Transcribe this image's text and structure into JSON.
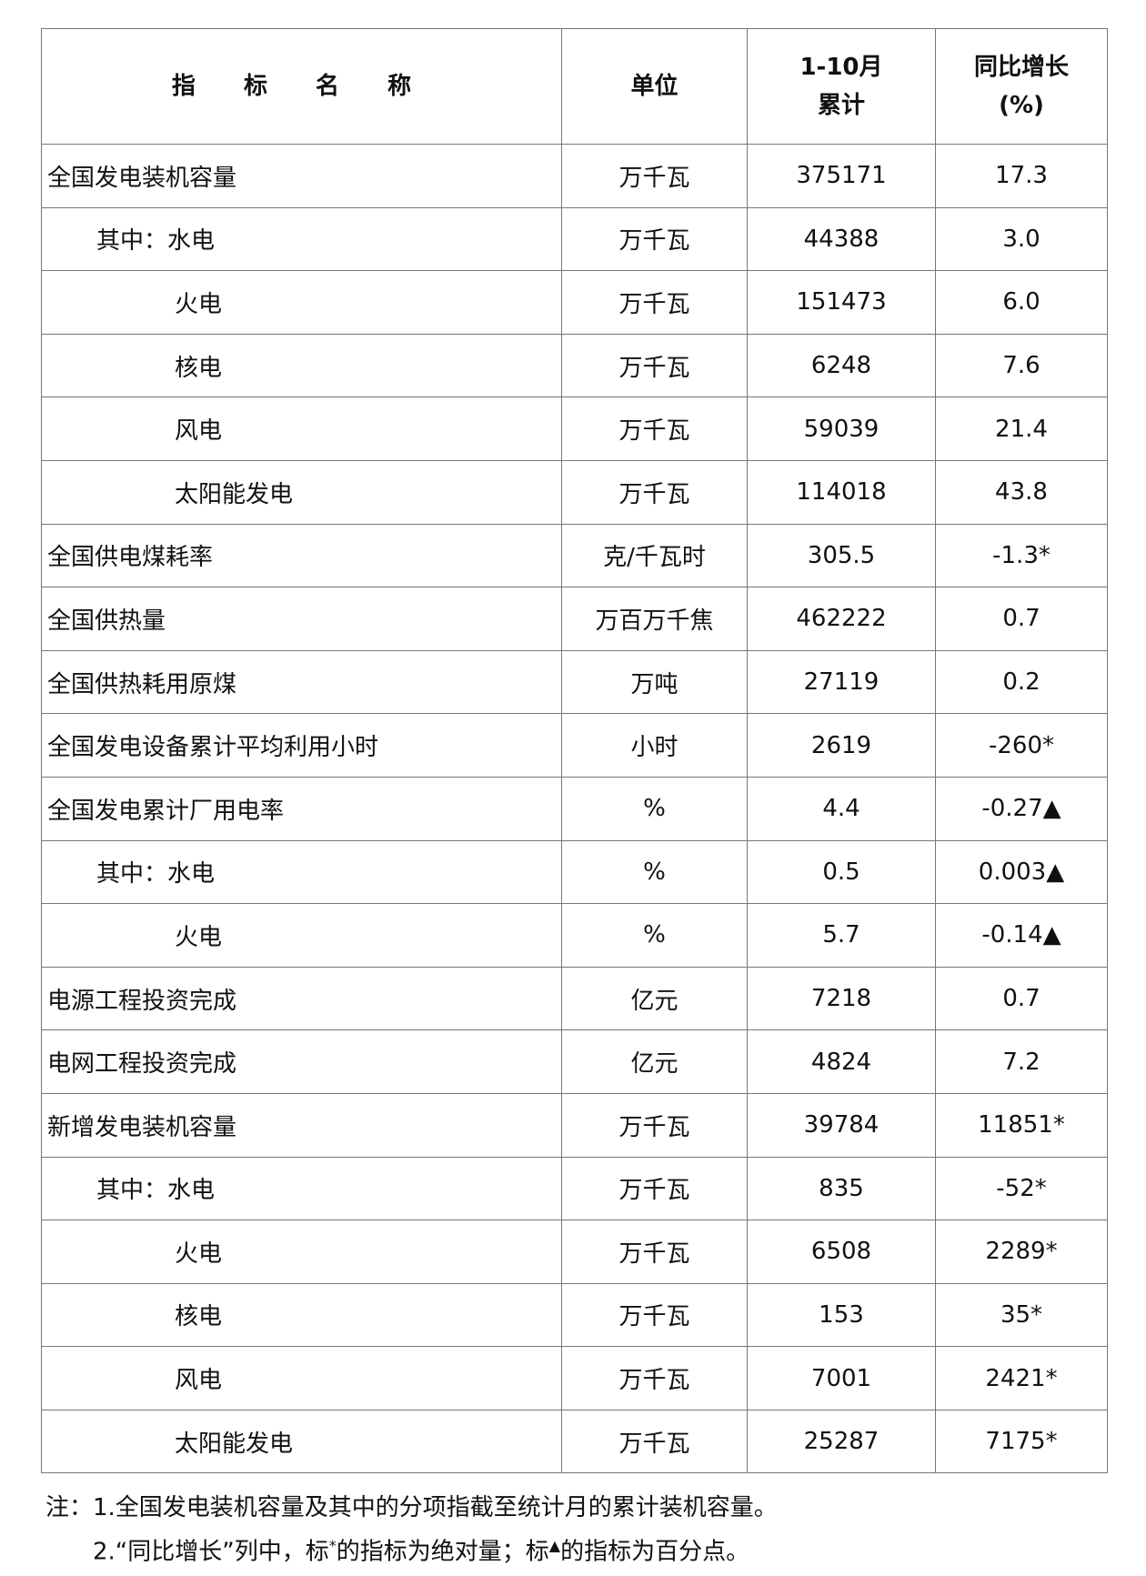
{
  "header": {
    "name": "指 标 名 称",
    "unit": "单位",
    "cum_line1": "1-10月",
    "cum_line2": "累计",
    "growth_line1": "同比增长",
    "growth_line2": "(%)"
  },
  "rows": [
    {
      "name": "全国发电装机容量",
      "level": 0,
      "unit": "万千瓦",
      "value": "375171",
      "growth": "17.3"
    },
    {
      "name": "其中：水电",
      "level": 1,
      "unit": "万千瓦",
      "value": "44388",
      "growth": "3.0"
    },
    {
      "name": "火电",
      "level": 2,
      "unit": "万千瓦",
      "value": "151473",
      "growth": "6.0"
    },
    {
      "name": "核电",
      "level": 2,
      "unit": "万千瓦",
      "value": "6248",
      "growth": "7.6"
    },
    {
      "name": "风电",
      "level": 2,
      "unit": "万千瓦",
      "value": "59039",
      "growth": "21.4"
    },
    {
      "name": "太阳能发电",
      "level": 2,
      "unit": "万千瓦",
      "value": "114018",
      "growth": "43.8"
    },
    {
      "name": "全国供电煤耗率",
      "level": 0,
      "unit": "克/千瓦时",
      "value": "305.5",
      "growth": "-1.3*"
    },
    {
      "name": "全国供热量",
      "level": 0,
      "unit": "万百万千焦",
      "value": "462222",
      "growth": "0.7"
    },
    {
      "name": "全国供热耗用原煤",
      "level": 0,
      "unit": "万吨",
      "value": "27119",
      "growth": "0.2"
    },
    {
      "name": "全国发电设备累计平均利用小时",
      "level": 0,
      "unit": "小时",
      "value": "2619",
      "growth": "-260*"
    },
    {
      "name": "全国发电累计厂用电率",
      "level": 0,
      "unit": "%",
      "value": "4.4",
      "growth": "-0.27▲"
    },
    {
      "name": "其中：水电",
      "level": 1,
      "unit": "%",
      "value": "0.5",
      "growth": "0.003▲"
    },
    {
      "name": "火电",
      "level": 2,
      "unit": "%",
      "value": "5.7",
      "growth": "-0.14▲"
    },
    {
      "name": "电源工程投资完成",
      "level": 0,
      "unit": "亿元",
      "value": "7218",
      "growth": "0.7"
    },
    {
      "name": "电网工程投资完成",
      "level": 0,
      "unit": "亿元",
      "value": "4824",
      "growth": "7.2"
    },
    {
      "name": "新增发电装机容量",
      "level": 0,
      "unit": "万千瓦",
      "value": "39784",
      "growth": "11851*"
    },
    {
      "name": "其中：水电",
      "level": 1,
      "unit": "万千瓦",
      "value": "835",
      "growth": "-52*"
    },
    {
      "name": "火电",
      "level": 2,
      "unit": "万千瓦",
      "value": "6508",
      "growth": "2289*"
    },
    {
      "name": "核电",
      "level": 2,
      "unit": "万千瓦",
      "value": "153",
      "growth": "35*"
    },
    {
      "name": "风电",
      "level": 2,
      "unit": "万千瓦",
      "value": "7001",
      "growth": "2421*"
    },
    {
      "name": "太阳能发电",
      "level": 2,
      "unit": "万千瓦",
      "value": "25287",
      "growth": "7175*"
    }
  ],
  "notes": {
    "note1": "注：1.全国发电装机容量及其中的分项指截至统计月的累计装机容量。",
    "note2_a": "2.“同比增长”列中，标",
    "note2_star": "*",
    "note2_b": "的指标为绝对量；标",
    "note2_tri": "▲",
    "note2_c": "的指标为百分点。"
  }
}
